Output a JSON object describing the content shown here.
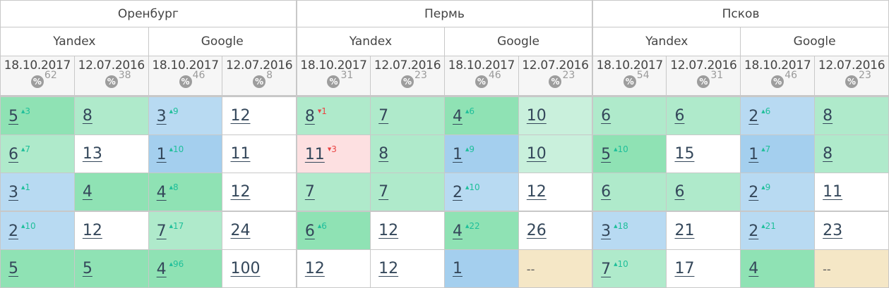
{
  "cities": [
    "Оренбург",
    "Пермь",
    "Псков"
  ],
  "engines": [
    "Yandex",
    "Google"
  ],
  "dates": [
    "18.10.2017",
    "12.07.2016"
  ],
  "percent_icon": "%",
  "percents": [
    62,
    38,
    46,
    8,
    31,
    23,
    46,
    23,
    54,
    31,
    46,
    23
  ],
  "colors": {
    "dg": "#8fe2b4",
    "mg": "#afeacb",
    "lg": "#c9f0dc",
    "b": "#a4cfee",
    "lb": "#b8daf2",
    "pk": "#fde0e1",
    "be": "#f5e7c6",
    "w": "#ffffff"
  },
  "rows": [
    [
      {
        "v": "5",
        "d": "3",
        "c": "dg"
      },
      {
        "v": "8",
        "c": "mg"
      },
      {
        "v": "3",
        "d": "9",
        "c": "lb"
      },
      {
        "v": "12",
        "c": "w"
      },
      {
        "v": "8",
        "d": "1",
        "dir": "down",
        "c": "mg"
      },
      {
        "v": "7",
        "c": "mg"
      },
      {
        "v": "4",
        "d": "6",
        "c": "dg"
      },
      {
        "v": "10",
        "c": "lg"
      },
      {
        "v": "6",
        "c": "mg"
      },
      {
        "v": "6",
        "c": "mg"
      },
      {
        "v": "2",
        "d": "6",
        "c": "lb"
      },
      {
        "v": "8",
        "c": "mg"
      }
    ],
    [
      {
        "v": "6",
        "d": "7",
        "c": "mg"
      },
      {
        "v": "13",
        "c": "w"
      },
      {
        "v": "1",
        "d": "10",
        "c": "b"
      },
      {
        "v": "11",
        "c": "w"
      },
      {
        "v": "11",
        "d": "3",
        "dir": "down",
        "c": "pk"
      },
      {
        "v": "8",
        "c": "mg"
      },
      {
        "v": "1",
        "d": "9",
        "c": "b"
      },
      {
        "v": "10",
        "c": "lg"
      },
      {
        "v": "5",
        "d": "10",
        "c": "dg"
      },
      {
        "v": "15",
        "c": "w"
      },
      {
        "v": "1",
        "d": "7",
        "c": "b"
      },
      {
        "v": "8",
        "c": "mg"
      }
    ],
    [
      {
        "v": "3",
        "d": "1",
        "c": "lb"
      },
      {
        "v": "4",
        "c": "dg"
      },
      {
        "v": "4",
        "d": "8",
        "c": "dg"
      },
      {
        "v": "12",
        "c": "w"
      },
      {
        "v": "7",
        "c": "mg"
      },
      {
        "v": "7",
        "c": "mg"
      },
      {
        "v": "2",
        "d": "10",
        "c": "lb"
      },
      {
        "v": "12",
        "c": "w"
      },
      {
        "v": "6",
        "c": "mg"
      },
      {
        "v": "6",
        "c": "mg"
      },
      {
        "v": "2",
        "d": "9",
        "c": "lb"
      },
      {
        "v": "11",
        "c": "w"
      }
    ],
    [
      {
        "v": "2",
        "d": "10",
        "c": "lb"
      },
      {
        "v": "12",
        "c": "w"
      },
      {
        "v": "7",
        "d": "17",
        "c": "mg"
      },
      {
        "v": "24",
        "c": "w"
      },
      {
        "v": "6",
        "d": "6",
        "c": "dg"
      },
      {
        "v": "12",
        "c": "w"
      },
      {
        "v": "4",
        "d": "22",
        "c": "dg"
      },
      {
        "v": "26",
        "c": "w"
      },
      {
        "v": "3",
        "d": "18",
        "c": "lb"
      },
      {
        "v": "21",
        "c": "w"
      },
      {
        "v": "2",
        "d": "21",
        "c": "lb"
      },
      {
        "v": "23",
        "c": "w"
      }
    ],
    [
      {
        "v": "5",
        "c": "dg"
      },
      {
        "v": "5",
        "c": "dg"
      },
      {
        "v": "4",
        "d": "96",
        "c": "dg"
      },
      {
        "v": "100",
        "c": "w"
      },
      {
        "v": "12",
        "c": "w"
      },
      {
        "v": "12",
        "c": "w"
      },
      {
        "v": "1",
        "c": "b"
      },
      {
        "v": "--",
        "c": "be",
        "empty": true
      },
      {
        "v": "7",
        "d": "10",
        "c": "mg"
      },
      {
        "v": "17",
        "c": "w"
      },
      {
        "v": "4",
        "c": "dg"
      },
      {
        "v": "--",
        "c": "be",
        "empty": true
      }
    ]
  ]
}
